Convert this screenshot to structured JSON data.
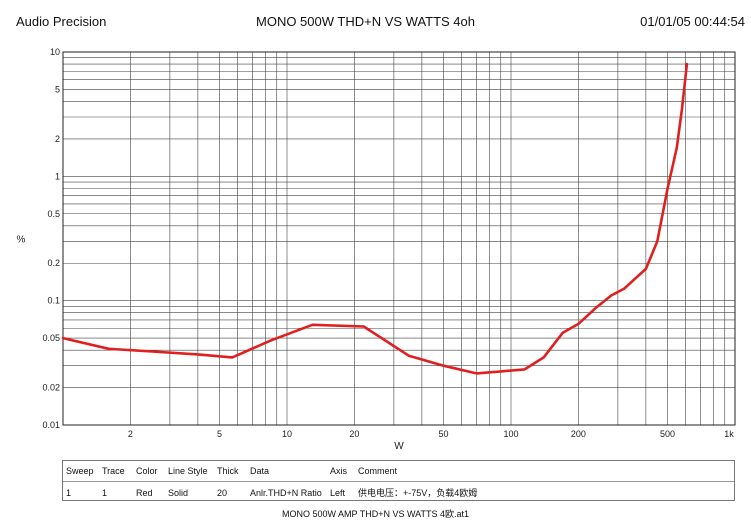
{
  "header": {
    "left": "Audio Precision",
    "center": "MONO 500W THD+N  VS    WATTS 4oh",
    "right": "01/01/05 00:44:54"
  },
  "chart_data": {
    "type": "line",
    "title": "MONO 500W THD+N  VS    WATTS 4oh",
    "xlabel": "W",
    "ylabel": "%",
    "x_scale": "log",
    "y_scale": "log",
    "xlim": [
      1,
      1000
    ],
    "ylim": [
      0.01,
      10
    ],
    "grid": true,
    "x_tick_labels": [
      {
        "value": 2,
        "label": "2"
      },
      {
        "value": 5,
        "label": "5"
      },
      {
        "value": 10,
        "label": "10"
      },
      {
        "value": 20,
        "label": "20"
      },
      {
        "value": 50,
        "label": "50"
      },
      {
        "value": 100,
        "label": "100"
      },
      {
        "value": 200,
        "label": "200"
      },
      {
        "value": 500,
        "label": "500"
      },
      {
        "value": 1000,
        "label": "1k"
      }
    ],
    "y_tick_labels": [
      {
        "value": 10,
        "label": "10"
      },
      {
        "value": 5,
        "label": "5"
      },
      {
        "value": 2,
        "label": "2"
      },
      {
        "value": 1,
        "label": "1"
      },
      {
        "value": 0.5,
        "label": "0.5"
      },
      {
        "value": 0.2,
        "label": "0.2"
      },
      {
        "value": 0.1,
        "label": "0.1"
      },
      {
        "value": 0.05,
        "label": "0.05"
      },
      {
        "value": 0.02,
        "label": "0.02"
      },
      {
        "value": 0.01,
        "label": "0.01"
      }
    ],
    "series": [
      {
        "color": "#e02020",
        "x": [
          1.0,
          1.6,
          2.5,
          4.0,
          5.7,
          8.5,
          13,
          22,
          35,
          50,
          70,
          90,
          115,
          140,
          170,
          200,
          240,
          280,
          320,
          400,
          450,
          500,
          550,
          580,
          610
        ],
        "y": [
          0.05,
          0.041,
          0.039,
          0.037,
          0.035,
          0.048,
          0.064,
          0.062,
          0.036,
          0.03,
          0.026,
          0.027,
          0.028,
          0.035,
          0.055,
          0.065,
          0.088,
          0.11,
          0.125,
          0.18,
          0.3,
          0.8,
          1.7,
          3.5,
          8.0
        ]
      }
    ]
  },
  "legend": {
    "headers": [
      "Sweep",
      "Trace",
      "Color",
      "Line Style",
      "Thick",
      "Data",
      "Axis",
      "Comment"
    ],
    "rows": [
      [
        "1",
        "1",
        "Red",
        "Solid",
        "20",
        "Anlr.THD+N Ratio",
        "Left",
        "供电电压：+-75V，负载4欧姆"
      ]
    ]
  },
  "footer": "MONO 500W AMP THD+N VS WATTS 4欧.at1"
}
